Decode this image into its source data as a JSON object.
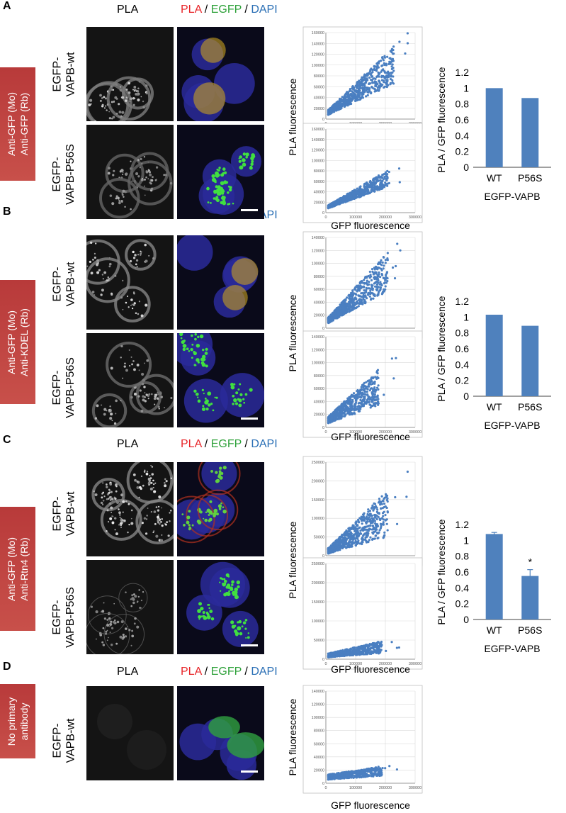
{
  "headers": {
    "pla": "PLA",
    "merge_pla": "PLA",
    "slash": " / ",
    "merge_egfp": "EGFP",
    "merge_dapi": "DAPI"
  },
  "panels": [
    {
      "letter": "A",
      "condition": [
        "Anti-GFP (Mo)",
        "Anti-GFP (Rb)"
      ],
      "rows": [
        [
          "EGFP-",
          "VAPB-wt"
        ],
        [
          "EGFP-",
          "VAPB-P56S"
        ]
      ]
    },
    {
      "letter": "B",
      "condition": [
        "Anti-GFP (Mo)",
        "Anti-KDEL (Rb)"
      ],
      "rows": [
        [
          "EGFP-",
          "VAPB-wt"
        ],
        [
          "EGFP-",
          "VAPB-P56S"
        ]
      ]
    },
    {
      "letter": "C",
      "condition": [
        "Anti-GFP (Mo)",
        "Anti-Rtn4 (Rb)"
      ],
      "rows": [
        [
          "EGFP-",
          "VAPB-wt"
        ],
        [
          "EGFP-",
          "VAPB-P56S"
        ]
      ]
    },
    {
      "letter": "D",
      "condition": [
        "No primary",
        "antibody"
      ],
      "rows": [
        [
          "EGFP-",
          "VAPB-wt"
        ]
      ]
    }
  ],
  "scatter_axis": {
    "xlabel": "GFP fluorescence",
    "ylabel": "PLA fluorescence"
  },
  "bar_axis": {
    "ylabel": "PLA / GFP fluorescence",
    "xlabel": "EGFP-VAPB"
  },
  "chart_data": [
    {
      "id": "A-wt",
      "type": "scatter",
      "xlim": [
        0,
        300000
      ],
      "ylim": [
        0,
        160000
      ],
      "xticks": [
        0,
        100000,
        200000,
        300000
      ],
      "yticks": [
        0,
        20000,
        40000,
        60000,
        80000,
        100000,
        120000,
        140000,
        160000
      ],
      "spread": 0.35,
      "slope": 0.4,
      "n": 700,
      "xmax_bulk": 220000,
      "grid": true
    },
    {
      "id": "A-p56s",
      "type": "scatter",
      "xlim": [
        0,
        300000
      ],
      "ylim": [
        0,
        160000
      ],
      "xticks": [
        0,
        100000,
        200000,
        300000
      ],
      "yticks": [
        0,
        20000,
        40000,
        60000,
        80000,
        100000,
        120000,
        140000,
        160000
      ],
      "spread": 0.25,
      "slope": 0.27,
      "n": 700,
      "xmax_bulk": 200000,
      "grid": true
    },
    {
      "id": "A-bar",
      "type": "bar",
      "categories": [
        "WT",
        "P56S"
      ],
      "values": [
        1.0,
        0.875
      ],
      "errors": [
        0,
        0
      ],
      "ylim": [
        0,
        1.2
      ],
      "yticks": [
        0,
        0.2,
        0.4,
        0.6,
        0.8,
        1,
        1.2
      ],
      "annotation": ""
    },
    {
      "id": "B-wt",
      "type": "scatter",
      "xlim": [
        0,
        300000
      ],
      "ylim": [
        0,
        140000
      ],
      "xticks": [
        0,
        100000,
        200000,
        300000
      ],
      "yticks": [
        0,
        20000,
        40000,
        60000,
        80000,
        100000,
        120000,
        140000
      ],
      "spread": 0.35,
      "slope": 0.38,
      "n": 700,
      "xmax_bulk": 200000,
      "grid": true
    },
    {
      "id": "B-p56s",
      "type": "scatter",
      "xlim": [
        0,
        300000
      ],
      "ylim": [
        0,
        140000
      ],
      "xticks": [
        0,
        100000,
        200000,
        300000
      ],
      "yticks": [
        0,
        20000,
        40000,
        60000,
        80000,
        100000,
        120000,
        140000
      ],
      "spread": 0.45,
      "slope": 0.3,
      "n": 700,
      "xmax_bulk": 170000,
      "grid": true
    },
    {
      "id": "B-bar",
      "type": "bar",
      "categories": [
        "WT",
        "P56S"
      ],
      "values": [
        1.03,
        0.89
      ],
      "errors": [
        0,
        0
      ],
      "ylim": [
        0,
        1.2
      ],
      "yticks": [
        0,
        0.2,
        0.4,
        0.6,
        0.8,
        1,
        1.2
      ],
      "annotation": ""
    },
    {
      "id": "C-wt",
      "type": "scatter",
      "xlim": [
        0,
        300000
      ],
      "ylim": [
        0,
        250000
      ],
      "xticks": [
        0,
        100000,
        200000,
        300000
      ],
      "yticks": [
        0,
        50000,
        100000,
        150000,
        200000,
        250000
      ],
      "spread": 0.55,
      "slope": 0.5,
      "n": 700,
      "xmax_bulk": 200000,
      "grid": true
    },
    {
      "id": "C-p56s",
      "type": "scatter",
      "xlim": [
        0,
        300000
      ],
      "ylim": [
        0,
        250000
      ],
      "xticks": [
        0,
        100000,
        200000,
        300000
      ],
      "yticks": [
        0,
        50000,
        100000,
        150000,
        200000,
        250000
      ],
      "spread": 0.5,
      "slope": 0.12,
      "n": 600,
      "xmax_bulk": 180000,
      "grid": true
    },
    {
      "id": "C-bar",
      "type": "bar",
      "categories": [
        "WT",
        "P56S"
      ],
      "values": [
        1.08,
        0.55
      ],
      "errors": [
        0.02,
        0.08
      ],
      "ylim": [
        0,
        1.2
      ],
      "yticks": [
        0,
        0.2,
        0.4,
        0.6,
        0.8,
        1,
        1.2
      ],
      "annotation": "*"
    },
    {
      "id": "D-wt",
      "type": "scatter",
      "xlim": [
        0,
        300000
      ],
      "ylim": [
        0,
        140000
      ],
      "xticks": [
        0,
        100000,
        200000,
        300000
      ],
      "yticks": [
        0,
        20000,
        40000,
        60000,
        80000,
        100000,
        120000,
        140000
      ],
      "spread": 0.4,
      "slope": 0.05,
      "n": 600,
      "xmax_bulk": 180000,
      "grid": true
    }
  ],
  "colors": {
    "point": "#4a7fc1",
    "bar": "#4f81bd",
    "label_bg": "#c0433f",
    "grid": "#d9d9d9"
  }
}
